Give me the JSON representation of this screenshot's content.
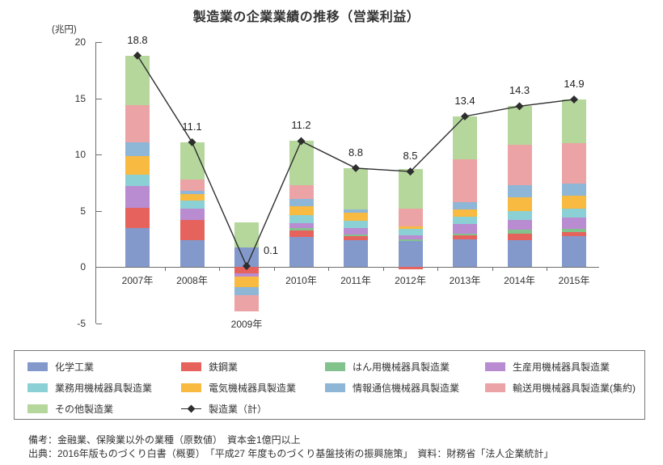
{
  "title": "製造業の企業業績の推移（営業利益）",
  "chart_data": {
    "type": "bar",
    "subtype": "stacked-bar-with-total-line",
    "title": "製造業の企業業績の推移（営業利益）",
    "unit_label": "(兆円)",
    "xlabel": "",
    "ylabel": "兆円",
    "ylim": [
      -5,
      20
    ],
    "y_ticks": [
      20,
      15,
      10,
      5,
      0,
      -5
    ],
    "grid": false,
    "legend_position": "bottom",
    "categories": [
      "2007年",
      "2008年",
      "2009年",
      "2010年",
      "2011年",
      "2012年",
      "2013年",
      "2014年",
      "2015年"
    ],
    "series": [
      {
        "name": "化学工業",
        "color": "#8399CC",
        "values": [
          3.5,
          2.4,
          1.75,
          2.7,
          2.4,
          2.3,
          2.45,
          2.4,
          2.75
        ]
      },
      {
        "name": "鉄鋼業",
        "color": "#E5635C",
        "values": [
          1.8,
          1.8,
          -0.55,
          0.55,
          0.35,
          -0.2,
          0.35,
          0.6,
          0.4
        ]
      },
      {
        "name": "はん用機械器具製造業",
        "color": "#82C28D",
        "values": [
          0,
          0,
          0,
          0.2,
          0.15,
          0.15,
          0.2,
          0.3,
          0.28
        ]
      },
      {
        "name": "生産用機械器具製造業",
        "color": "#B98BD1",
        "values": [
          1.9,
          1.0,
          -0.3,
          0.45,
          0.6,
          0.4,
          0.85,
          0.9,
          1.0
        ]
      },
      {
        "name": "業務用機械器具製造業",
        "color": "#8BD0D4",
        "values": [
          1.0,
          0.7,
          0,
          0.7,
          0.65,
          0.55,
          0.6,
          0.75,
          0.75
        ]
      },
      {
        "name": "電気機械器具製造業",
        "color": "#F8BA40",
        "values": [
          1.7,
          0.6,
          -0.9,
          0.85,
          0.7,
          0.25,
          0.7,
          1.25,
          1.15
        ]
      },
      {
        "name": "情報通信機械器具製造業",
        "color": "#8EB6D7",
        "values": [
          1.2,
          0.25,
          -0.75,
          0.6,
          0.25,
          0,
          0.6,
          1.1,
          1.1
        ]
      },
      {
        "name": "輸送用機械器具製造業(集約)",
        "color": "#ECA3A5",
        "values": [
          3.3,
          1.05,
          -1.4,
          1.25,
          0,
          1.55,
          3.8,
          3.6,
          3.6
        ]
      },
      {
        "name": "その他製造業",
        "color": "#B5D79C",
        "values": [
          4.4,
          3.3,
          2.25,
          3.9,
          3.7,
          3.5,
          3.85,
          3.4,
          3.87
        ]
      }
    ],
    "line_series": {
      "name": "製造業（計）",
      "color": "#2e2e2e",
      "values": [
        18.8,
        11.1,
        0.1,
        11.2,
        8.8,
        8.5,
        13.4,
        14.3,
        14.9
      ]
    },
    "value_labels": [
      "18.8",
      "11.1",
      "0.1",
      "11.2",
      "8.8",
      "8.5",
      "13.4",
      "14.3",
      "14.9"
    ]
  },
  "notes": {
    "note1": "備考：金融業、保険業以外の業種（原数値）　資本金1億円以上",
    "note2": "出典：2016年版ものづくり白書（概要）　「平成27 年度ものづくり基盤技術の振興施策」　資料：財務省「法人企業統計」"
  }
}
